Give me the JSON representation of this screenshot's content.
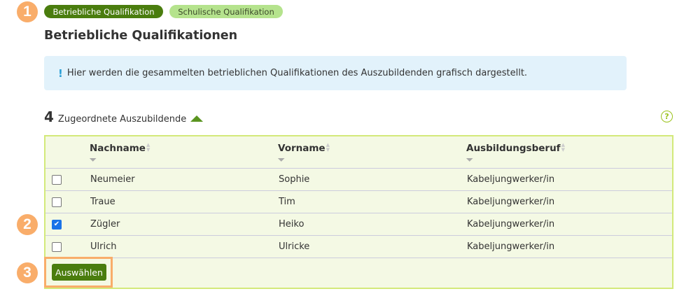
{
  "markers": [
    "1",
    "2",
    "3"
  ],
  "tabs": [
    {
      "label": "Betriebliche Qualifikation",
      "active": true
    },
    {
      "label": "Schulische Qualifikation",
      "active": false
    }
  ],
  "title": "Betriebliche Qualifikationen",
  "info": {
    "icon": "!",
    "text": "Hier werden die gesammelten betrieblichen Qualifikationen des Auszubildenden grafisch dargestellt."
  },
  "count": {
    "number": "4",
    "label": "Zugeordnete Auszubildende"
  },
  "help_icon": "?",
  "table": {
    "columns": [
      "Nachname",
      "Vorname",
      "Ausbildungsberuf"
    ],
    "rows": [
      {
        "nachname": "Neumeier",
        "vorname": "Sophie",
        "beruf": "Kabeljungwerker/in",
        "checked": false
      },
      {
        "nachname": "Traue",
        "vorname": "Tim",
        "beruf": "Kabeljungwerker/in",
        "checked": false
      },
      {
        "nachname": "Zügler",
        "vorname": "Heiko",
        "beruf": "Kabeljungwerker/in",
        "checked": true
      },
      {
        "nachname": "Ulrich",
        "vorname": "Ulricke",
        "beruf": "Kabeljungwerker/in",
        "checked": false
      }
    ]
  },
  "select_button": "Auswählen",
  "colors": {
    "primary": "#4a7d0e",
    "light_green": "#b5e38d",
    "marker": "#f9ad6a",
    "info_bg": "#e2f2fb"
  }
}
